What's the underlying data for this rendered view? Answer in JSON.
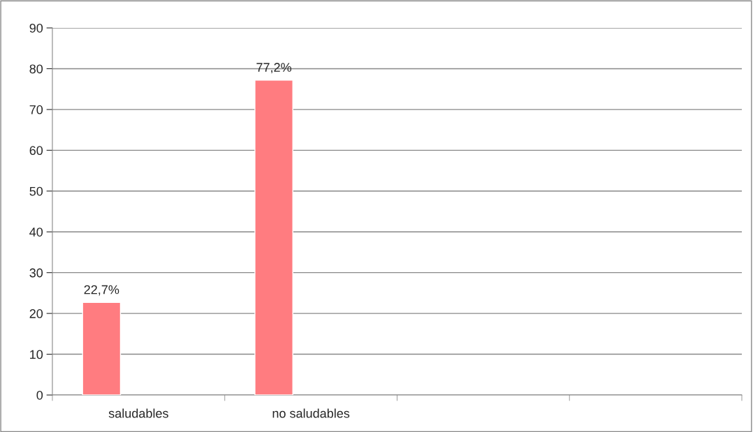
{
  "chart_data": {
    "type": "bar",
    "categories": [
      "saludables",
      "no saludables",
      null,
      null
    ],
    "values": [
      22.7,
      77.2,
      null,
      null
    ],
    "color": "#ff7c80",
    "value_labels": [
      "22,7%",
      "77,2%",
      null,
      null
    ],
    "ylim": [
      0,
      90
    ],
    "yticks": [
      0,
      10,
      20,
      30,
      40,
      50,
      60,
      70,
      80,
      90
    ],
    "grid": "y",
    "legend": false
  }
}
